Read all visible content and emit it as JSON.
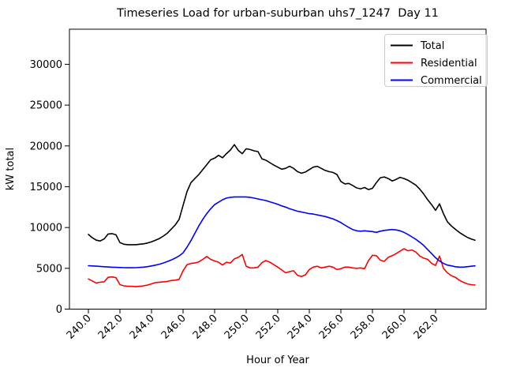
{
  "title": "Timeseries Load for urban-suburban uhs7_1247  Day 11",
  "colors": {
    "background": "#ffffff",
    "frame": "#000000",
    "legend_border": "#cccccc"
  },
  "chart_data": {
    "type": "line",
    "title": "Timeseries Load for urban-suburban uhs7_1247  Day 11",
    "xlabel": "Hour of Year",
    "ylabel": "kW total",
    "grid": false,
    "legend_position": "upper right",
    "xlim": [
      238.8,
      265.2
    ],
    "ylim": [
      0,
      34300
    ],
    "x_start": 240.0,
    "x_step": 0.25,
    "x_ticks": [
      {
        "value": 240.0,
        "label": "240.0"
      },
      {
        "value": 242.0,
        "label": "242.0"
      },
      {
        "value": 244.0,
        "label": "244.0"
      },
      {
        "value": 246.0,
        "label": "246.0"
      },
      {
        "value": 248.0,
        "label": "248.0"
      },
      {
        "value": 250.0,
        "label": "250.0"
      },
      {
        "value": 252.0,
        "label": "252.0"
      },
      {
        "value": 254.0,
        "label": "254.0"
      },
      {
        "value": 256.0,
        "label": "256.0"
      },
      {
        "value": 258.0,
        "label": "258.0"
      },
      {
        "value": 260.0,
        "label": "260.0"
      },
      {
        "value": 262.0,
        "label": "262.0"
      }
    ],
    "y_ticks": [
      {
        "value": 0,
        "label": "0"
      },
      {
        "value": 5000,
        "label": "5000"
      },
      {
        "value": 10000,
        "label": "10000"
      },
      {
        "value": 15000,
        "label": "15000"
      },
      {
        "value": 20000,
        "label": "20000"
      },
      {
        "value": 25000,
        "label": "25000"
      },
      {
        "value": 30000,
        "label": "30000"
      }
    ],
    "series": [
      {
        "name": "Total",
        "color": "#000000",
        "values": [
          9150,
          8750,
          8450,
          8350,
          8600,
          9200,
          9250,
          9100,
          8150,
          7950,
          7900,
          7900,
          7900,
          7950,
          8000,
          8100,
          8250,
          8450,
          8650,
          8950,
          9300,
          9800,
          10300,
          11000,
          12700,
          14400,
          15500,
          16000,
          16500,
          17100,
          17700,
          18300,
          18500,
          18850,
          18550,
          19050,
          19500,
          20150,
          19450,
          19050,
          19650,
          19550,
          19400,
          19300,
          18400,
          18250,
          17950,
          17650,
          17400,
          17150,
          17250,
          17500,
          17250,
          16850,
          16650,
          16800,
          17100,
          17400,
          17500,
          17250,
          17000,
          16850,
          16750,
          16500,
          15650,
          15350,
          15400,
          15150,
          14850,
          14750,
          14900,
          14650,
          14800,
          15500,
          16100,
          16200,
          16000,
          15700,
          15900,
          16150,
          16000,
          15800,
          15500,
          15200,
          14700,
          14100,
          13400,
          12800,
          12100,
          12900,
          11700,
          10700,
          10200,
          9800,
          9400,
          9100,
          8800,
          8600,
          8450
        ]
      },
      {
        "name": "Residential",
        "color": "#ff0000",
        "values": [
          3700,
          3450,
          3200,
          3300,
          3350,
          3900,
          3950,
          3850,
          3000,
          2850,
          2800,
          2800,
          2750,
          2800,
          2850,
          2950,
          3100,
          3250,
          3300,
          3350,
          3400,
          3500,
          3550,
          3650,
          4700,
          5450,
          5600,
          5650,
          5800,
          6100,
          6450,
          6100,
          5900,
          5750,
          5400,
          5750,
          5650,
          6150,
          6350,
          6700,
          5250,
          5050,
          5050,
          5150,
          5700,
          5950,
          5750,
          5450,
          5150,
          4800,
          4450,
          4600,
          4700,
          4150,
          4000,
          4200,
          4850,
          5150,
          5250,
          5050,
          5150,
          5250,
          5150,
          4850,
          4950,
          5150,
          5150,
          5050,
          5000,
          5050,
          4950,
          5950,
          6600,
          6550,
          6000,
          5850,
          6350,
          6550,
          6800,
          7100,
          7400,
          7150,
          7250,
          7000,
          6500,
          6250,
          6100,
          5600,
          5350,
          6500,
          5000,
          4450,
          4100,
          3900,
          3550,
          3300,
          3100,
          3000,
          2950
        ]
      },
      {
        "name": "Commercial",
        "color": "#0000ff",
        "values": [
          5320,
          5290,
          5260,
          5230,
          5200,
          5170,
          5140,
          5120,
          5100,
          5080,
          5070,
          5070,
          5080,
          5110,
          5150,
          5210,
          5290,
          5390,
          5510,
          5650,
          5820,
          6020,
          6250,
          6520,
          6900,
          7600,
          8400,
          9300,
          10200,
          11000,
          11700,
          12300,
          12800,
          13100,
          13400,
          13600,
          13700,
          13750,
          13750,
          13750,
          13750,
          13700,
          13600,
          13500,
          13400,
          13300,
          13150,
          13000,
          12850,
          12650,
          12500,
          12300,
          12150,
          12000,
          11900,
          11800,
          11700,
          11650,
          11550,
          11450,
          11350,
          11200,
          11050,
          10850,
          10600,
          10300,
          10000,
          9750,
          9600,
          9550,
          9600,
          9550,
          9500,
          9400,
          9550,
          9650,
          9700,
          9750,
          9700,
          9600,
          9400,
          9150,
          8850,
          8550,
          8200,
          7800,
          7300,
          6800,
          6300,
          5900,
          5600,
          5400,
          5300,
          5200,
          5150,
          5150,
          5200,
          5250,
          5300
        ]
      }
    ]
  }
}
